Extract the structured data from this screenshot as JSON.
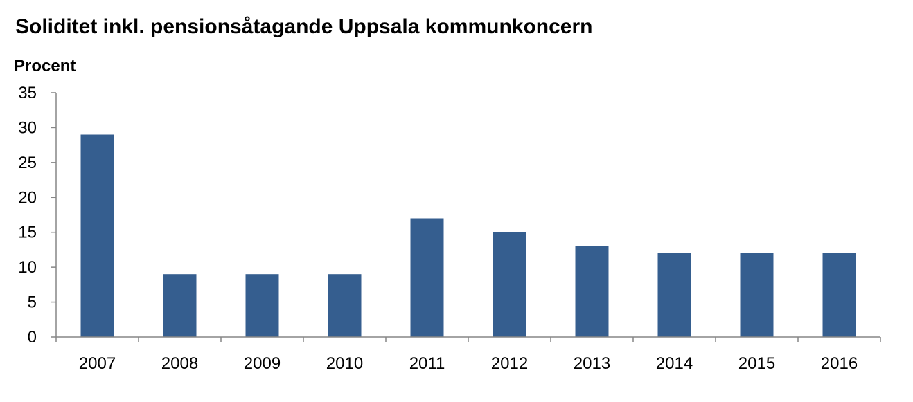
{
  "chart_data": {
    "type": "bar",
    "title": "Soliditet inkl. pensionsåtagande Uppsala kommunkoncern",
    "ylabel": "Procent",
    "xlabel": "",
    "categories": [
      "2007",
      "2008",
      "2009",
      "2010",
      "2011",
      "2012",
      "2013",
      "2014",
      "2015",
      "2016"
    ],
    "values": [
      29,
      9,
      9,
      9,
      17,
      15,
      13,
      12,
      12,
      12
    ],
    "ylim": [
      0,
      35
    ],
    "yticks": [
      "0",
      "5",
      "10",
      "15",
      "20",
      "25",
      "30",
      "35"
    ],
    "grid": false,
    "legend": "none",
    "bar_color": "#355E8F",
    "axis_color": "#868686"
  }
}
